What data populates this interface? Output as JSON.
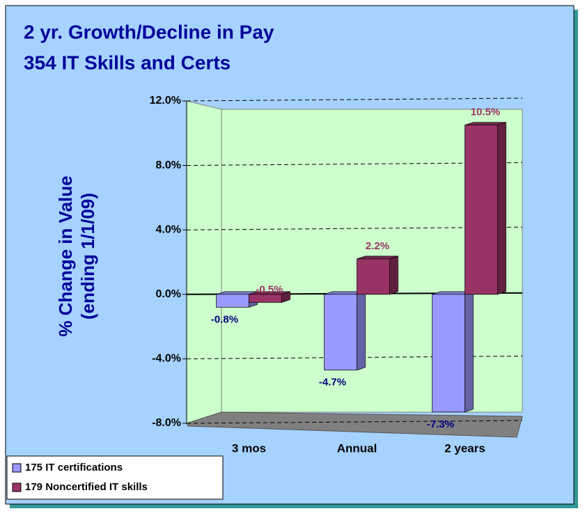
{
  "chart_data": {
    "type": "bar",
    "title": [
      "2 yr. Growth/Decline in Pay",
      "354 IT Skills and Certs"
    ],
    "ylabel": [
      "% Change in Value",
      "(ending 1/1/09)"
    ],
    "categories": [
      "3 mos",
      "Annual",
      "2 years"
    ],
    "series": [
      {
        "name": "175 IT certifications",
        "color": "#9999ff",
        "label_color": "#000080",
        "values": [
          -0.8,
          -4.7,
          -7.3
        ],
        "value_labels": [
          "-0.8%",
          "-4.7%",
          "-7.3%"
        ]
      },
      {
        "name": "179 Noncertified IT skills",
        "color": "#993366",
        "label_color": "#993366",
        "values": [
          -0.5,
          2.2,
          10.5
        ],
        "value_labels": [
          "-0.5%",
          "2.2%",
          "10.5%"
        ]
      }
    ],
    "ylim": [
      -8,
      12
    ],
    "yticks": [
      {
        "value": -8,
        "label": "-8.0%"
      },
      {
        "value": -4,
        "label": "-4.0%"
      },
      {
        "value": 0,
        "label": "0.0%"
      },
      {
        "value": 4,
        "label": "4.0%"
      },
      {
        "value": 8,
        "label": "8.0%"
      },
      {
        "value": 12,
        "label": "12.0%"
      }
    ],
    "grid": true,
    "legend": "bottom-left"
  }
}
